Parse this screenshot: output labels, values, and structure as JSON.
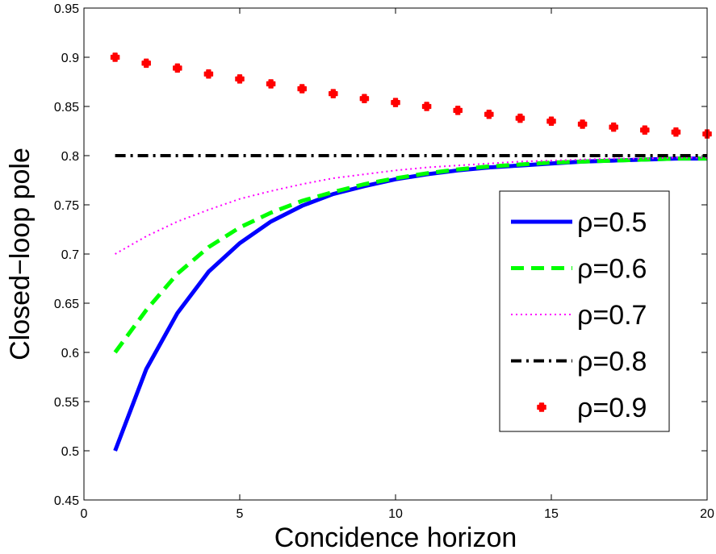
{
  "chart_data": {
    "type": "line",
    "title": "",
    "xlabel": "Concidence horizon",
    "ylabel": "Closed−loop pole",
    "xlim": [
      0,
      20
    ],
    "ylim": [
      0.45,
      0.95
    ],
    "xticks": [
      0,
      5,
      10,
      15,
      20
    ],
    "xtick_labels": [
      "0",
      "5",
      "10",
      "15",
      "20"
    ],
    "yticks": [
      0.45,
      0.5,
      0.55,
      0.6,
      0.65,
      0.7,
      0.75,
      0.8,
      0.85,
      0.9,
      0.95
    ],
    "ytick_labels": [
      "0.45",
      "0.5",
      "0.55",
      "0.6",
      "0.65",
      "0.7",
      "0.75",
      "0.8",
      "0.85",
      "0.9",
      "0.95"
    ],
    "grid": false,
    "legend_position": "center-right",
    "x": [
      1,
      2,
      3,
      4,
      5,
      6,
      7,
      8,
      9,
      10,
      11,
      12,
      13,
      14,
      15,
      16,
      17,
      18,
      19,
      20
    ],
    "series": [
      {
        "name": "ρ=0.5",
        "color": "#0000ff",
        "style": "solid",
        "values": [
          0.5,
          0.583,
          0.64,
          0.682,
          0.711,
          0.733,
          0.749,
          0.761,
          0.769,
          0.776,
          0.781,
          0.785,
          0.788,
          0.79,
          0.792,
          0.794,
          0.795,
          0.796,
          0.797,
          0.797
        ]
      },
      {
        "name": "ρ=0.6",
        "color": "#00ff00",
        "style": "dashed",
        "values": [
          0.6,
          0.643,
          0.68,
          0.707,
          0.727,
          0.742,
          0.754,
          0.763,
          0.771,
          0.777,
          0.782,
          0.786,
          0.789,
          0.791,
          0.793,
          0.794,
          0.795,
          0.796,
          0.797,
          0.797
        ]
      },
      {
        "name": "ρ=0.7",
        "color": "#ff00ff",
        "style": "dotted",
        "values": [
          0.7,
          0.718,
          0.733,
          0.745,
          0.756,
          0.764,
          0.771,
          0.777,
          0.781,
          0.785,
          0.788,
          0.79,
          0.792,
          0.794,
          0.795,
          0.796,
          0.797,
          0.797,
          0.798,
          0.798
        ]
      },
      {
        "name": "ρ=0.8",
        "color": "#000000",
        "style": "dashdot",
        "values": [
          0.8,
          0.8,
          0.8,
          0.8,
          0.8,
          0.8,
          0.8,
          0.8,
          0.8,
          0.8,
          0.8,
          0.8,
          0.8,
          0.8,
          0.8,
          0.8,
          0.8,
          0.8,
          0.8,
          0.8
        ]
      },
      {
        "name": "ρ=0.9",
        "color": "#ff0000",
        "style": "markers",
        "values": [
          0.9,
          0.894,
          0.889,
          0.883,
          0.878,
          0.873,
          0.868,
          0.863,
          0.858,
          0.854,
          0.85,
          0.846,
          0.842,
          0.838,
          0.835,
          0.832,
          0.829,
          0.826,
          0.824,
          0.822
        ]
      }
    ]
  }
}
